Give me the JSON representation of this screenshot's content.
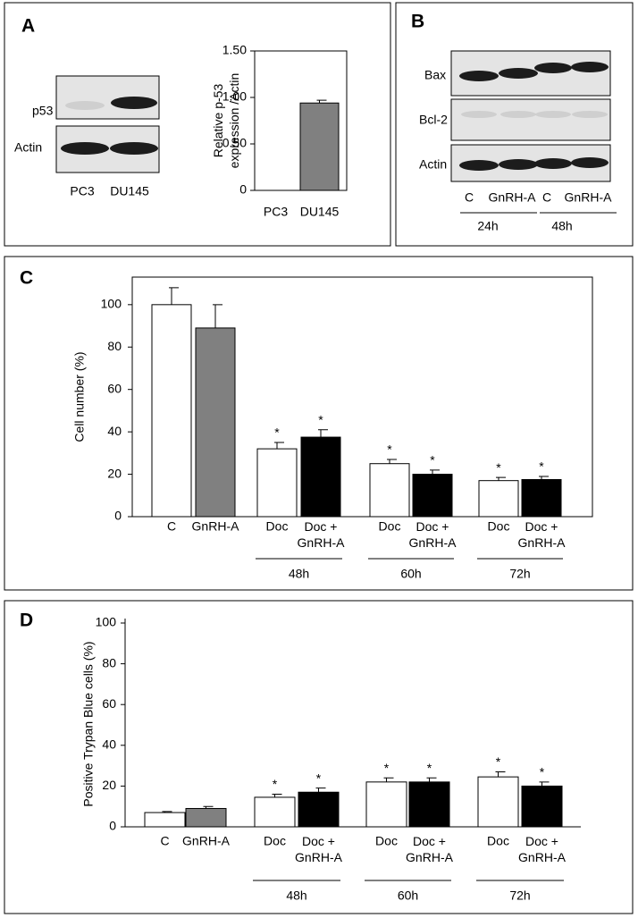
{
  "panel_labels": [
    "A",
    "B",
    "C",
    "D"
  ],
  "blots": [
    {
      "rows": [
        "p53",
        "Actin"
      ],
      "lanes": [
        "PC3",
        "DU145"
      ]
    },
    {
      "rows": [
        "Bax",
        "Bcl-2",
        "Actin"
      ],
      "lanes": [
        "C",
        "GnRH-A",
        "C",
        "GnRH-A"
      ],
      "groups": [
        "24h",
        "48h"
      ]
    }
  ],
  "chart_data": [
    {
      "type": "bar",
      "ylabel": "Relative p-53\nexpression /Actin",
      "categories": [
        "PC3",
        "DU145"
      ],
      "values": [
        0,
        0.94
      ],
      "errors": [
        0,
        0.03
      ],
      "colors": [
        "#808080",
        "#808080"
      ],
      "ylim": [
        0,
        1.5
      ],
      "yticks": [
        0,
        {
          "value": 0.5,
          "label": "0.50"
        },
        {
          "value": 1,
          "label": "1.00"
        },
        {
          "value": 1.5,
          "label": "1.50"
        }
      ]
    },
    {
      "type": "bar",
      "ylabel": "Cell number (%)",
      "categories": [
        "C",
        "GnRH-A",
        "Doc",
        "Doc +\nGnRH-A",
        "Doc",
        "Doc +\nGnRH-A",
        "Doc",
        "Doc +\nGnRH-A"
      ],
      "values": [
        100,
        89,
        32,
        37.5,
        25,
        20,
        17,
        17.5
      ],
      "errors": [
        8,
        11,
        3,
        3.5,
        2,
        2,
        1.5,
        1.5
      ],
      "colors": [
        "#ffffff",
        "#808080",
        "#ffffff",
        "#000000",
        "#ffffff",
        "#000000",
        "#ffffff",
        "#000000"
      ],
      "significance": [
        null,
        null,
        "*",
        "*",
        "*",
        "*",
        "*",
        "*"
      ],
      "groups": [
        "48h",
        "60h",
        "72h"
      ],
      "ylim": [
        0,
        113
      ],
      "yticks": [
        0,
        20,
        40,
        60,
        80,
        100
      ]
    },
    {
      "type": "bar",
      "ylabel": "Positive Trypan Blue cells (%)",
      "categories": [
        "C",
        "GnRH-A",
        "Doc",
        "Doc +\nGnRH-A",
        "Doc",
        "Doc +\nGnRH-A",
        "Doc",
        "Doc +\nGnRH-A"
      ],
      "values": [
        7,
        9,
        14.5,
        17,
        22,
        22,
        24.5,
        20
      ],
      "errors": [
        0.5,
        1,
        1.5,
        2,
        2,
        2,
        2.5,
        2
      ],
      "colors": [
        "#ffffff",
        "#808080",
        "#ffffff",
        "#000000",
        "#ffffff",
        "#000000",
        "#ffffff",
        "#000000"
      ],
      "significance": [
        null,
        null,
        "*",
        "*",
        "*",
        "*",
        "*",
        "*"
      ],
      "groups": [
        "48h",
        "60h",
        "72h"
      ],
      "ylim": [
        0,
        100
      ],
      "yticks": [
        0,
        20,
        40,
        60,
        80,
        100
      ]
    }
  ]
}
